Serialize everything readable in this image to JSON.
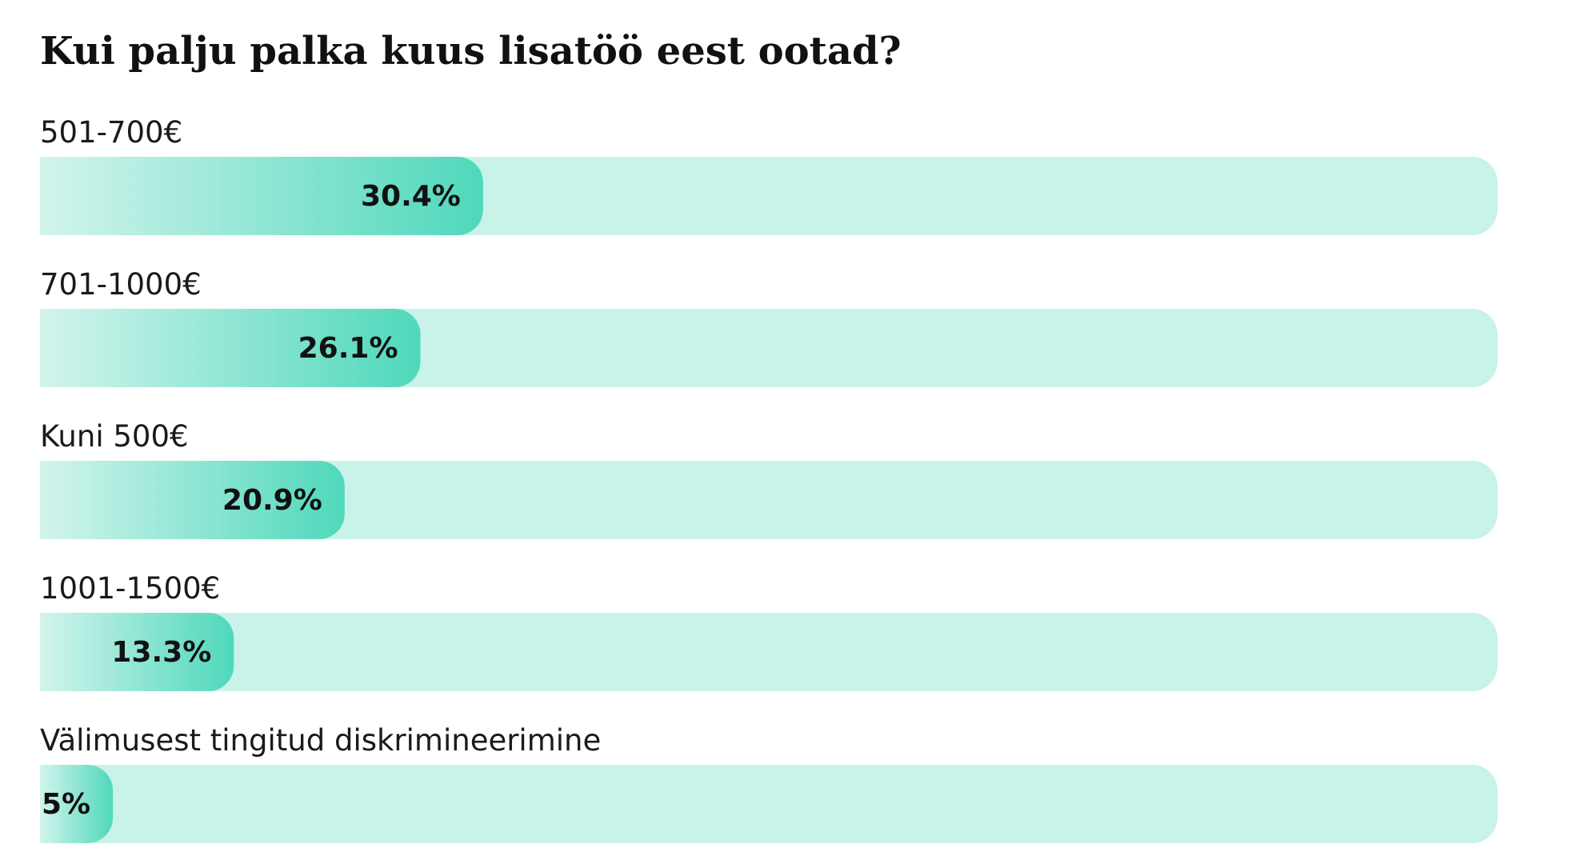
{
  "chart_data": {
    "type": "bar",
    "orientation": "horizontal",
    "title": "Kui palju palka kuus lisatöö eest ootad?",
    "categories": [
      "501-700€",
      "701-1000€",
      "Kuni 500€",
      "1001-1500€",
      "Välimusest tingitud diskrimineerimine"
    ],
    "values": [
      30.4,
      26.1,
      20.9,
      13.3,
      5
    ],
    "value_labels": [
      "30.4%",
      "26.1%",
      "20.9%",
      "13.3%",
      "5%"
    ],
    "xlim": [
      0,
      100
    ],
    "color": "#4fd8bb",
    "gradient_start_color": "#d3f4ed",
    "track_color": "#c9f2e9"
  }
}
